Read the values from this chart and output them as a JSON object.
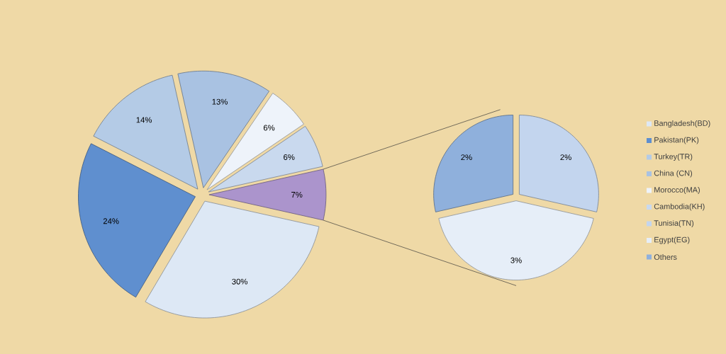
{
  "chart_data": [
    {
      "type": "pie",
      "categories": [
        "Bangladesh(BD)",
        "Pakistan(PK)",
        "Turkey(TR)",
        "China (CN)",
        "Morocco(MA)",
        "Cambodia(KH)",
        null
      ],
      "values": [
        30,
        24,
        14,
        13,
        6,
        6,
        7
      ],
      "value_labels": [
        "30%",
        "24%",
        "14%",
        "13%",
        "6%",
        "6%",
        "7%"
      ],
      "colors": [
        "#dde8f5",
        "#5f8fcf",
        "#b4cbe6",
        "#a9c2e2",
        "#eef3fa",
        "#c9d9ee",
        "#ab94cc"
      ],
      "legend": "right"
    },
    {
      "type": "pie",
      "categories": [
        "Tunisia(TN)",
        "Egypt(EG)",
        "Others"
      ],
      "values": [
        2,
        3,
        2
      ],
      "value_labels": [
        "2%",
        "3%",
        "2%"
      ],
      "colors": [
        "#c3d5ee",
        "#e6eef8",
        "#8fb0dc"
      ],
      "legend": "right"
    }
  ]
}
